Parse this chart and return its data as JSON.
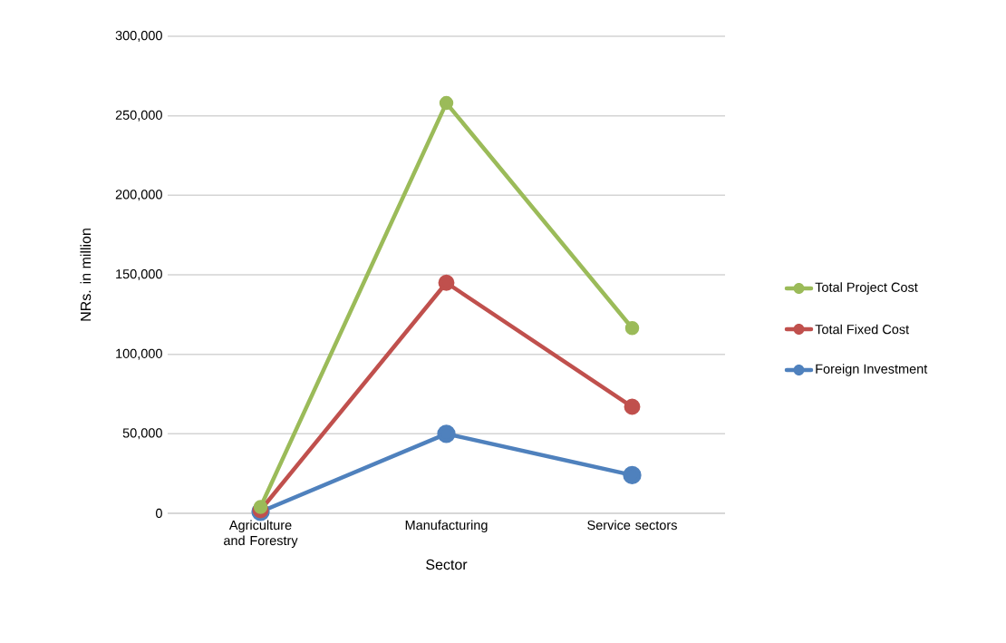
{
  "chart_data": {
    "type": "line",
    "xlabel": "Sector",
    "ylabel": "NRs. in million",
    "categories": [
      "Agriculture and Forestry",
      "Manufacturing",
      "Service sectors"
    ],
    "series": [
      {
        "name": "Total Project Cost",
        "color": "#9bbb59",
        "values": [
          4000,
          258000,
          116500
        ]
      },
      {
        "name": "Total Fixed Cost",
        "color": "#c0504d",
        "values": [
          2000,
          145000,
          67000
        ]
      },
      {
        "name": "Foreign Investment",
        "color": "#4f81bd",
        "values": [
          1000,
          50000,
          24000
        ]
      }
    ],
    "ylim": [
      0,
      300000
    ],
    "yticks": [
      0,
      {
        "value": 50000,
        "label": "50,000"
      },
      {
        "value": 100000,
        "label": "100,000"
      },
      {
        "value": 150000,
        "label": "150,000"
      },
      {
        "value": 200000,
        "label": "200,000"
      },
      {
        "value": 250000,
        "label": "250,000"
      },
      {
        "value": 300000,
        "label": "300,000"
      }
    ],
    "grid": "y",
    "legend": "right",
    "marker": "circle",
    "line_style": "solid"
  }
}
